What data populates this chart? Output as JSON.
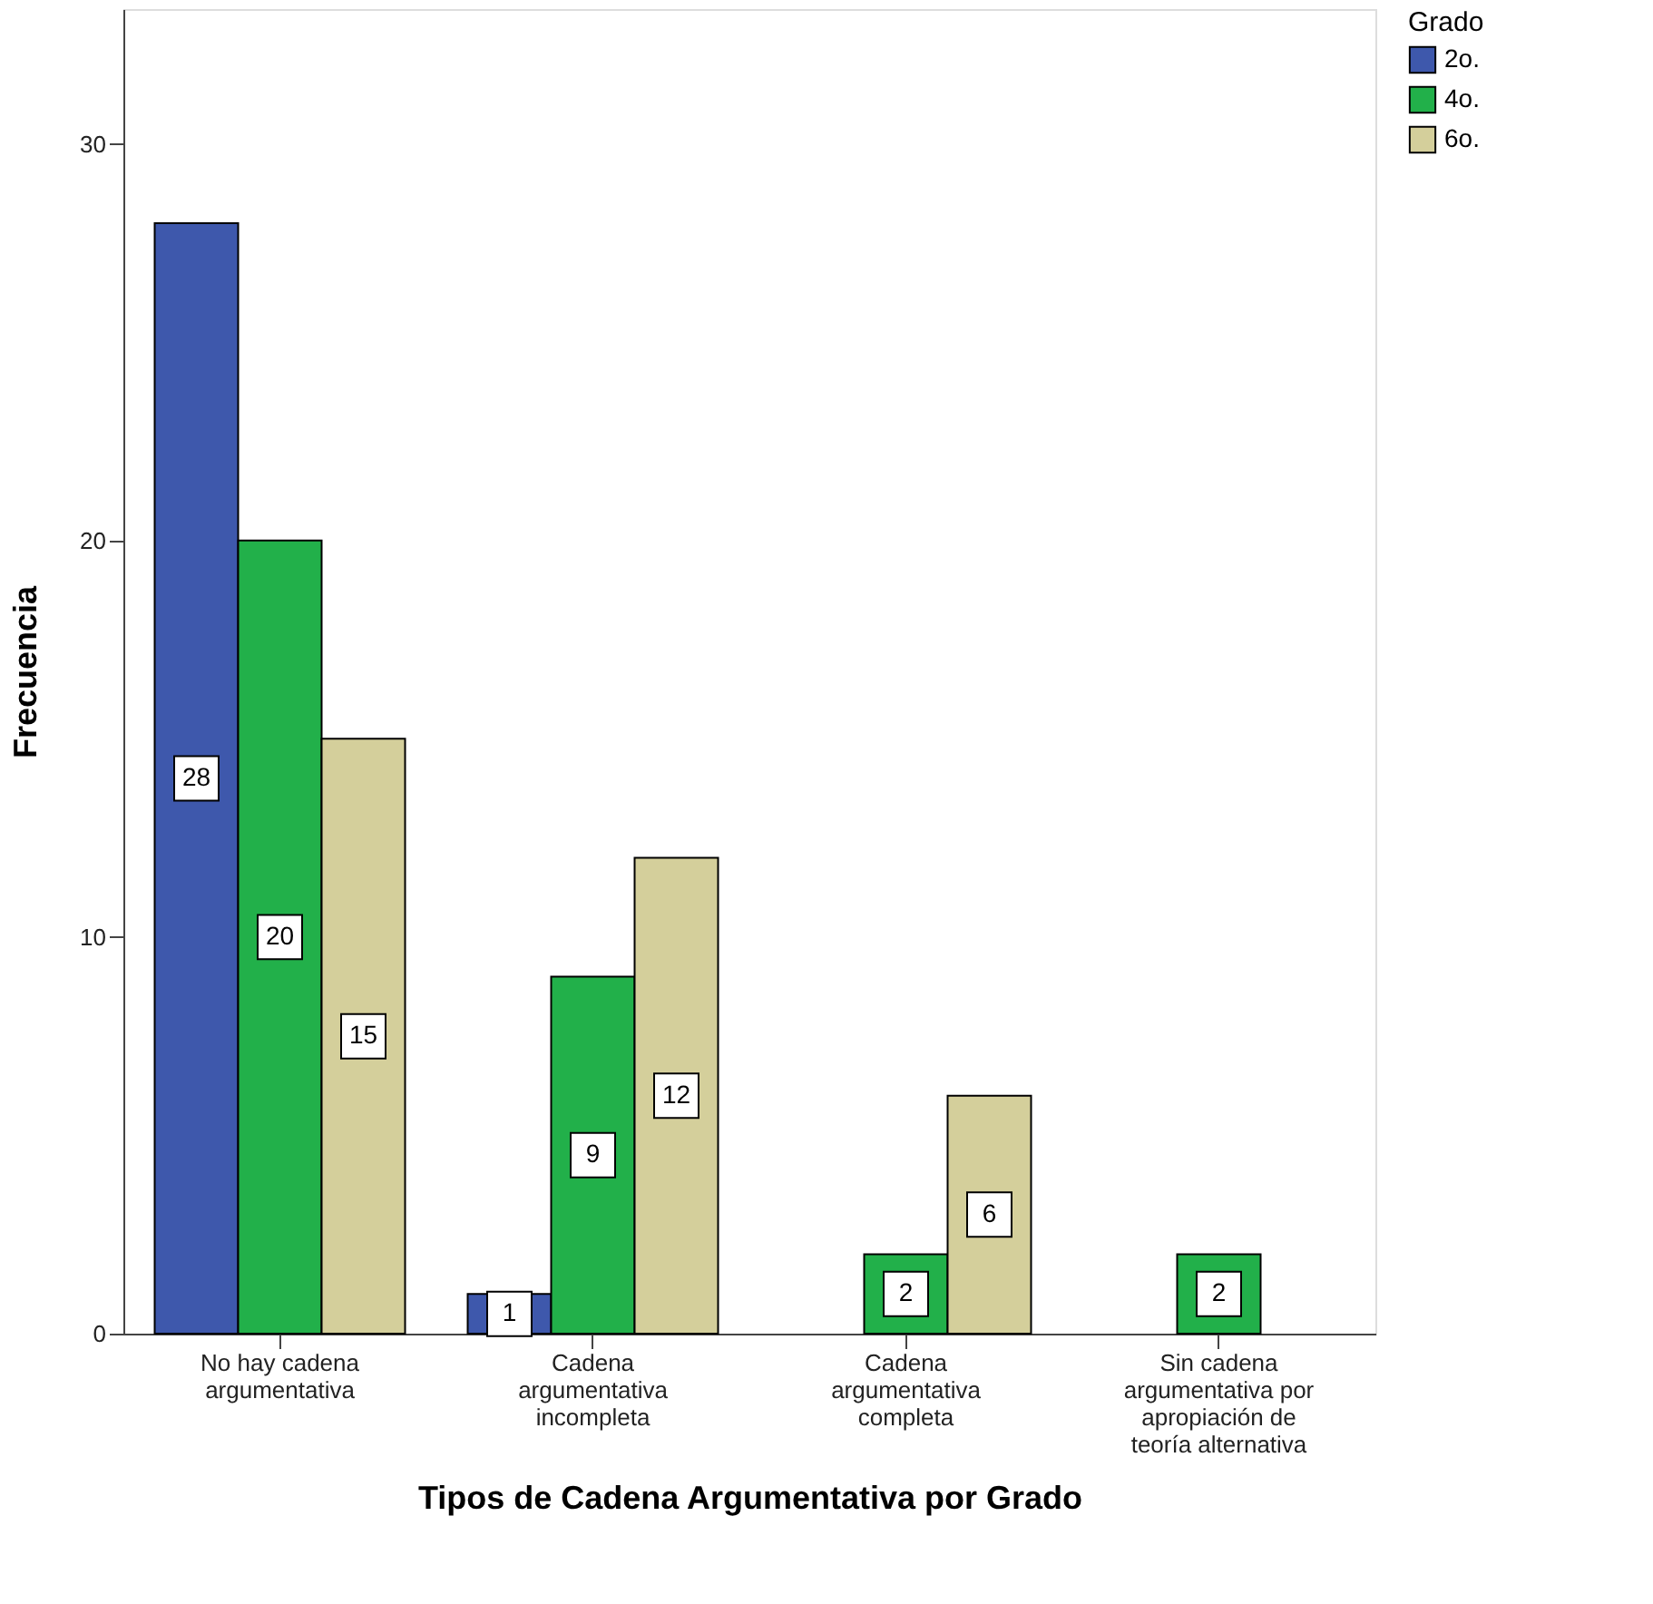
{
  "chart_data": {
    "type": "bar",
    "xlabel": "Tipos de Cadena Argumentativa por Grado",
    "ylabel": "Frecuencia",
    "legend_title": "Grado",
    "categories": [
      "No hay cadena argumentativa",
      "Cadena argumentativa incompleta",
      "Cadena argumentativa completa",
      "Sin cadena argumentativa por apropiación de teoría alternativa"
    ],
    "series": [
      {
        "name": "2o.",
        "color": "#3e58ac",
        "values": [
          28,
          1,
          null,
          null
        ]
      },
      {
        "name": "4o.",
        "color": "#22b04a",
        "values": [
          20,
          9,
          2,
          2
        ]
      },
      {
        "name": "6o.",
        "color": "#d4cf9b",
        "values": [
          15,
          12,
          6,
          null
        ]
      }
    ],
    "ylim": [
      0,
      33.4
    ],
    "yticks": [
      0,
      10,
      20,
      30
    ],
    "grid": false,
    "legend": "top right",
    "data_labels": true
  }
}
